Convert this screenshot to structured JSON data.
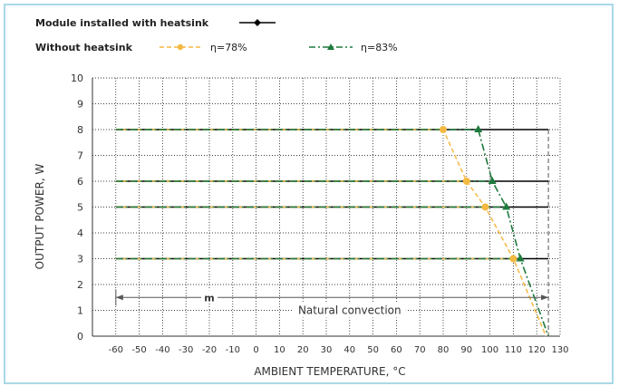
{
  "legend": {
    "with_heatsink_label": "Module installed with heatsink",
    "without_heatsink_label": "Without heatsink",
    "eta78_label": "η=78%",
    "eta83_label": "η=83%"
  },
  "colors": {
    "with_heatsink": "#000000",
    "eta78": "#f4b942",
    "eta83": "#1e7a3c",
    "grid": "#000000"
  },
  "chart_data": {
    "type": "line",
    "title": "",
    "xlabel": "AMBIENT TEMPERATURE, °C",
    "ylabel": "OUTPUT POWER, W",
    "xlim": [
      -70,
      130
    ],
    "ylim": [
      0,
      10
    ],
    "xticks": [
      -60,
      -50,
      -40,
      -30,
      -20,
      -10,
      0,
      10,
      20,
      30,
      40,
      50,
      60,
      70,
      80,
      90,
      100,
      110,
      120,
      130
    ],
    "yticks": [
      0,
      1,
      2,
      3,
      4,
      5,
      6,
      7,
      8,
      9,
      10
    ],
    "grid": true,
    "legend_position": "top-left",
    "series": [
      {
        "name": "Module installed with heatsink",
        "group": "with",
        "x": [
          -60,
          125
        ],
        "y": [
          8,
          8
        ]
      },
      {
        "name": "Module installed with heatsink",
        "group": "with",
        "x": [
          -60,
          125
        ],
        "y": [
          6,
          6
        ]
      },
      {
        "name": "Module installed with heatsink",
        "group": "with",
        "x": [
          -60,
          125
        ],
        "y": [
          5,
          5
        ]
      },
      {
        "name": "Module installed with heatsink",
        "group": "with",
        "x": [
          -60,
          125
        ],
        "y": [
          3,
          3
        ]
      },
      {
        "name": "η=78%",
        "group": "eta78",
        "x": [
          -60,
          80,
          90,
          98,
          110,
          124
        ],
        "y": [
          8,
          8,
          6,
          5,
          3,
          0
        ]
      },
      {
        "name": "η=78%",
        "group": "eta78",
        "x": [
          -60,
          90
        ],
        "y": [
          6,
          6
        ]
      },
      {
        "name": "η=78%",
        "group": "eta78",
        "x": [
          -60,
          98
        ],
        "y": [
          5,
          5
        ]
      },
      {
        "name": "η=78%",
        "group": "eta78",
        "x": [
          -60,
          110
        ],
        "y": [
          3,
          3
        ]
      },
      {
        "name": "η=83%",
        "group": "eta83",
        "x": [
          -60,
          95,
          101,
          107,
          113,
          125
        ],
        "y": [
          8,
          8,
          6,
          5,
          3,
          0
        ]
      },
      {
        "name": "η=83%",
        "group": "eta83",
        "x": [
          -60,
          101
        ],
        "y": [
          6,
          6
        ]
      },
      {
        "name": "η=83%",
        "group": "eta83",
        "x": [
          -60,
          107
        ],
        "y": [
          5,
          5
        ]
      },
      {
        "name": "η=83%",
        "group": "eta83",
        "x": [
          -60,
          113
        ],
        "y": [
          3,
          3
        ]
      }
    ],
    "markers_eta78": {
      "x": [
        80,
        90,
        98,
        110
      ],
      "y": [
        8,
        6,
        5,
        3
      ]
    },
    "markers_eta83": {
      "x": [
        95,
        101,
        107,
        113
      ],
      "y": [
        8,
        6,
        5,
        3
      ]
    },
    "limit_line_x": 125,
    "annotations": {
      "range_label": "m",
      "range_x": [
        -60,
        125
      ],
      "range_y": 1.5,
      "convection_label": "Natural convection",
      "convection_x": 40,
      "convection_y": 1
    }
  }
}
